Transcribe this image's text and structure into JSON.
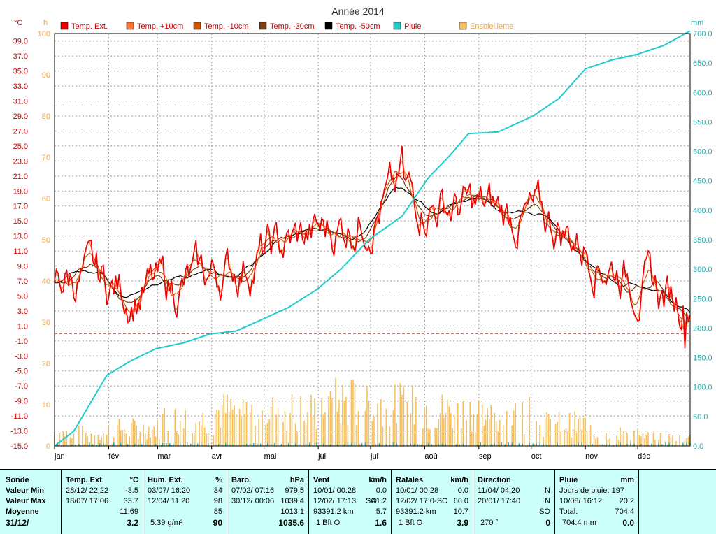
{
  "chart_data": {
    "type": "line",
    "title": "Année 2014",
    "left_axis_unit": "°C",
    "hours_axis_unit": "h",
    "right_axis_unit": "mm",
    "temp_range": [
      -15.0,
      40.0
    ],
    "temp_ticks": [
      "39.0",
      "37.0",
      "35.0",
      "33.0",
      "31.0",
      "29.0",
      "27.0",
      "25.0",
      "23.0",
      "21.0",
      "19.0",
      "17.0",
      "15.0",
      "13.0",
      "11.0",
      "9.0",
      "7.0",
      "5.0",
      "3.0",
      "1.0",
      "-1.0",
      "-3.0",
      "-5.0",
      "-7.0",
      "-9.0",
      "-11.0",
      "-13.0",
      "-15.0"
    ],
    "hours_range": [
      0,
      100
    ],
    "hours_ticks": [
      "100",
      "90",
      "80",
      "70",
      "60",
      "50",
      "40",
      "30",
      "20",
      "10",
      "0"
    ],
    "rain_range": [
      0,
      700
    ],
    "rain_ticks": [
      "700.0",
      "650.0",
      "600.0",
      "550.0",
      "500.0",
      "450.0",
      "400.0",
      "350.0",
      "300.0",
      "250.0",
      "200.0",
      "150.0",
      "100.0",
      "50.0",
      "0.0"
    ],
    "months": [
      "jan",
      "fév",
      "mar",
      "avr",
      "mai",
      "jui",
      "jui",
      "aoû",
      "sep",
      "oct",
      "nov",
      "déc"
    ],
    "legend": [
      {
        "label": "Temp. Ext.",
        "color": "#ee0000"
      },
      {
        "label": "Temp. +10cm",
        "color": "#ff7733"
      },
      {
        "label": "Temp. -10cm",
        "color": "#cc5500"
      },
      {
        "label": "Temp. -30cm",
        "color": "#7a3a10"
      },
      {
        "label": "Temp. -50cm",
        "color": "#000000"
      },
      {
        "label": "Pluie",
        "color": "#22cccc"
      },
      {
        "label": "Ensoleilleme",
        "color": "#f5c060"
      }
    ],
    "reference_line": 0.0,
    "temp_ext_monthly": [
      7.5,
      5.5,
      6.5,
      9.0,
      12.0,
      14.5,
      18.5,
      17.0,
      16.0,
      14.5,
      9.5,
      5.0
    ],
    "temp_ext_peak_max": 25.0,
    "temp_ext_min": -2.0,
    "rain_cumulative": [
      {
        "day": 1,
        "v": 0
      },
      {
        "day": 12,
        "v": 25
      },
      {
        "day": 20,
        "v": 65
      },
      {
        "day": 31,
        "v": 120
      },
      {
        "day": 45,
        "v": 145
      },
      {
        "day": 59,
        "v": 165
      },
      {
        "day": 75,
        "v": 175
      },
      {
        "day": 90,
        "v": 190
      },
      {
        "day": 105,
        "v": 195
      },
      {
        "day": 120,
        "v": 215
      },
      {
        "day": 135,
        "v": 235
      },
      {
        "day": 151,
        "v": 265
      },
      {
        "day": 165,
        "v": 300
      },
      {
        "day": 181,
        "v": 350
      },
      {
        "day": 200,
        "v": 390
      },
      {
        "day": 215,
        "v": 455
      },
      {
        "day": 228,
        "v": 495
      },
      {
        "day": 238,
        "v": 530
      },
      {
        "day": 255,
        "v": 533
      },
      {
        "day": 275,
        "v": 560
      },
      {
        "day": 290,
        "v": 590
      },
      {
        "day": 305,
        "v": 640
      },
      {
        "day": 320,
        "v": 655
      },
      {
        "day": 335,
        "v": 665
      },
      {
        "day": 350,
        "v": 680
      },
      {
        "day": 365,
        "v": 704.4
      }
    ],
    "sunshine_monthly_avg_h": [
      3,
      4,
      6,
      8,
      8,
      10,
      9,
      8,
      7,
      5,
      3,
      2
    ]
  },
  "panel": {
    "sonde": {
      "header": "Sonde",
      "min": "Valeur Min",
      "max": "Valeur Max",
      "avg": "Moyenne",
      "date": "31/12/"
    },
    "temp": {
      "header": "Temp. Ext.",
      "unit": "°C",
      "min_date": "28/12/  22:22",
      "min_val": "-3.5",
      "max_date": "18/07/  17:06",
      "max_val": "33.7",
      "avg": "11.69",
      "cur": "3.2"
    },
    "hum": {
      "header": "Hum. Ext.",
      "unit": "%",
      "min_date": "03/07/  16:20",
      "min_val": "34",
      "max_date": "12/04/  11:20",
      "max_val": "98",
      "avg": "85",
      "abs": "5.39 g/m³",
      "cur": "90"
    },
    "baro": {
      "header": "Baro.",
      "unit": "hPa",
      "min_date": "07/02/  07:16",
      "min_val": "979.5",
      "max_date": "30/12/  00:06",
      "max_val": "1039.4",
      "avg": "1013.1",
      "cur": "1035.6"
    },
    "vent": {
      "header": "Vent",
      "unit": "km/h",
      "min_date": "10/01/  00:28",
      "min_val": "0.0",
      "max_date": "12/02/  17:13",
      "max_dir": "SO",
      "max_val": "41.2",
      "dist": "93391.2 km",
      "avg": "5.7",
      "bft": "1 Bft O",
      "cur": "1.6"
    },
    "rafales": {
      "header": "Rafales",
      "unit": "km/h",
      "min_date": "10/01/  00:28",
      "min_val": "0.0",
      "max_date": "12/02/  17:0-SO",
      "max_val": "66.0",
      "dist": "93391.2 km",
      "avg": "10.7",
      "bft": "1 Bft O",
      "cur": "3.9"
    },
    "direction": {
      "header": "Direction",
      "min_date": "11/04/  04:20",
      "min_val": "N",
      "max_date": "20/01/  17:40",
      "max_val": "N",
      "avg": "SO",
      "deg": "270 °",
      "cur": "0"
    },
    "pluie": {
      "header": "Pluie",
      "unit": "mm",
      "days": "Jours de pluie: 197",
      "max_date": "10/08/  16:12",
      "max_val": "20.2",
      "total_label": "Total:",
      "total_val": "704.4",
      "cur_total": "704.4 mm",
      "cur": "0.0"
    }
  }
}
